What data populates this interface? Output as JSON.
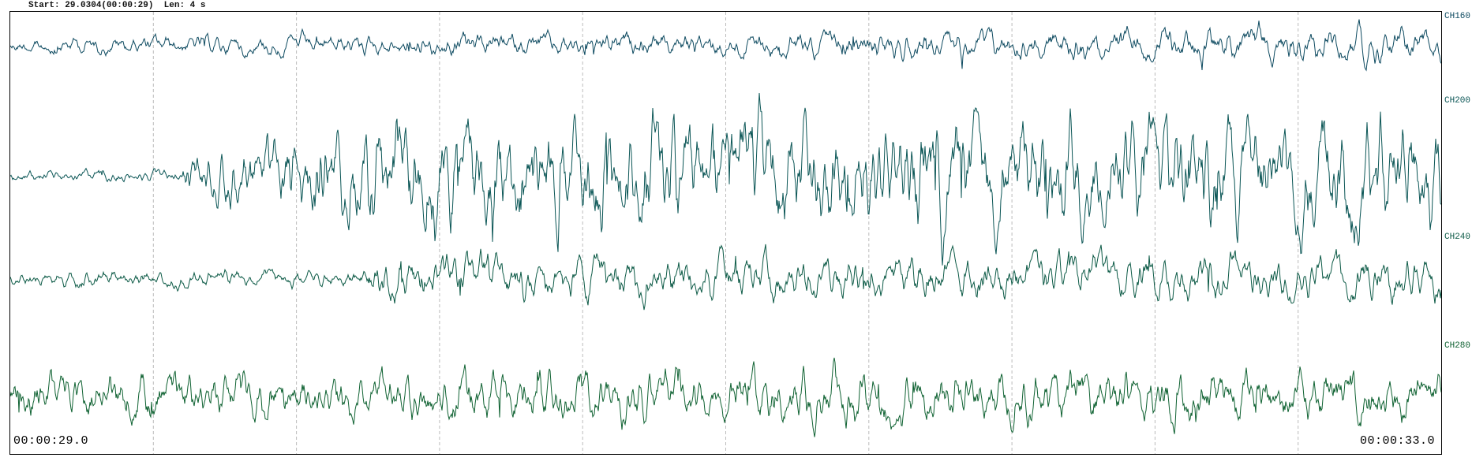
{
  "header": {
    "start_label": "Start:",
    "start_value": "29.0304(00:00:29)",
    "len_label": "Len:",
    "len_value": "4 s"
  },
  "time_axis": {
    "start": "00:00:29.0",
    "end": "00:00:33.0",
    "divisions": 10
  },
  "channels": [
    {
      "name": "CH160",
      "color": "#0d4a60"
    },
    {
      "name": "CH200",
      "color": "#0b5656"
    },
    {
      "name": "CH240",
      "color": "#0c5a46"
    },
    {
      "name": "CH280",
      "color": "#0f6232"
    }
  ],
  "grid": {
    "color": "#bbbbbb",
    "style": "dashed"
  }
}
